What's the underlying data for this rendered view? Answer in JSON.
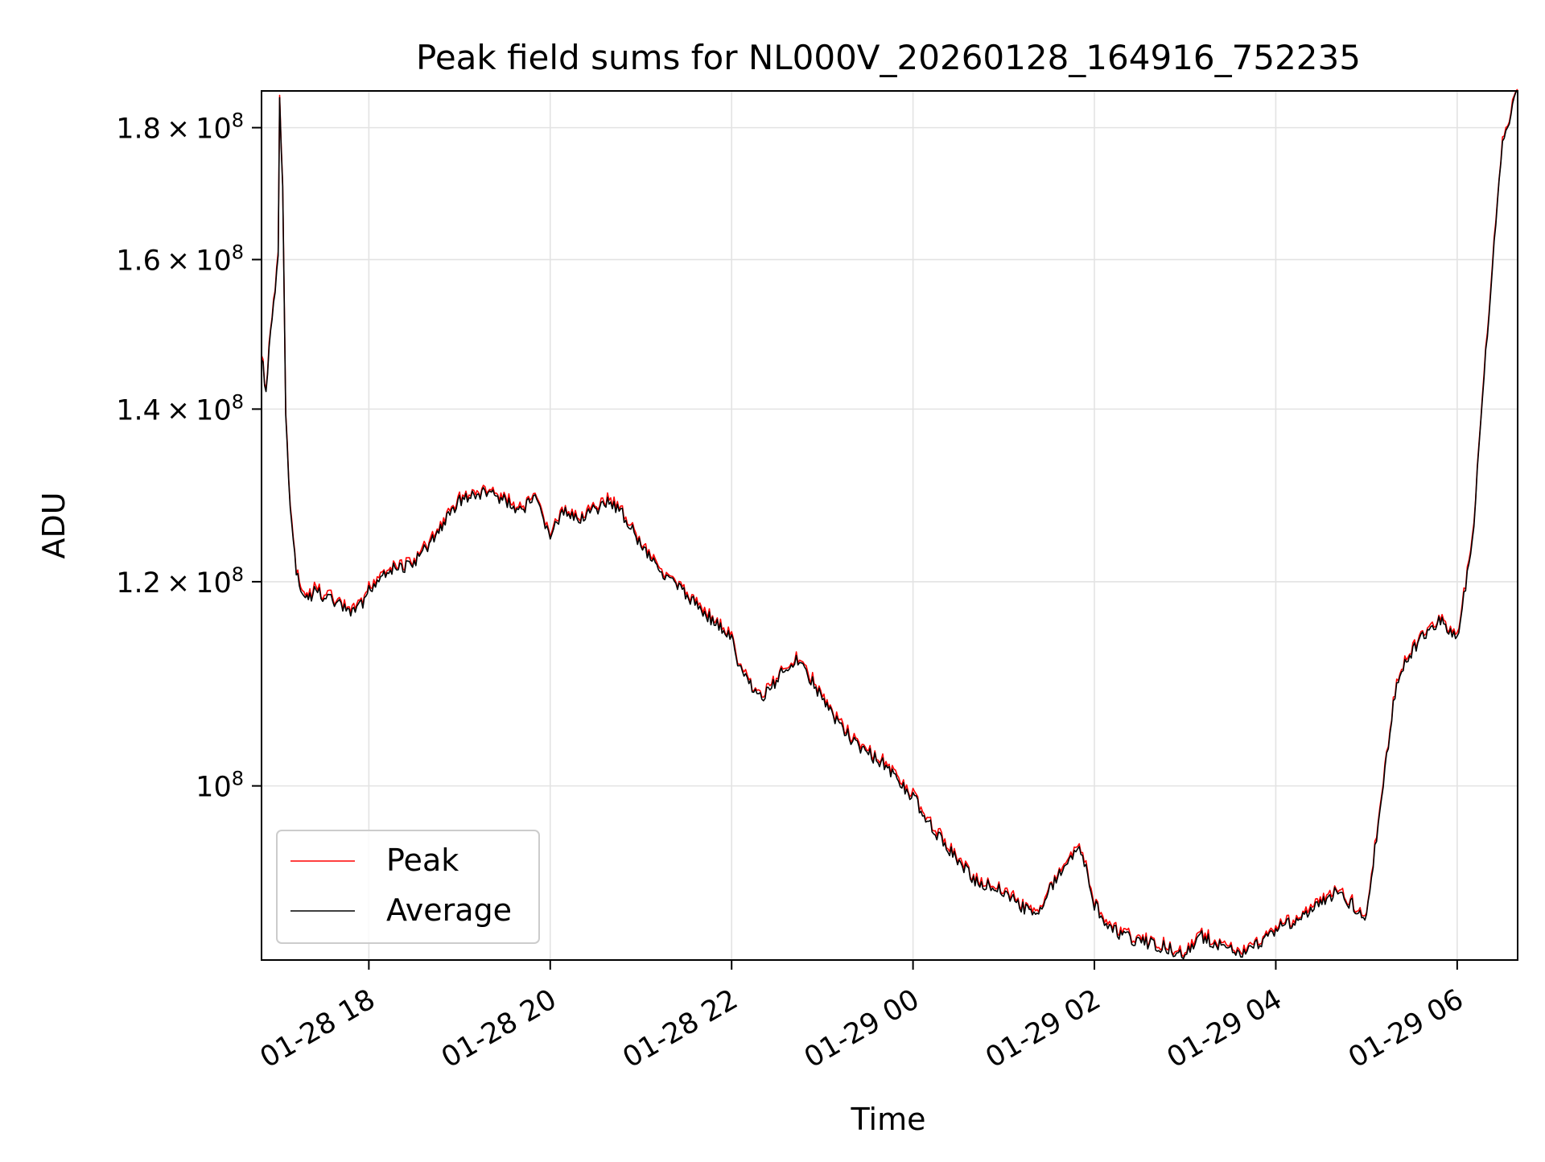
{
  "chart_data": {
    "type": "line",
    "title": "Peak field sums for NL000V_20260128_164916_752235",
    "xlabel": "Time",
    "ylabel": "ADU",
    "y_scale": "log",
    "grid": true,
    "legend_placement": "lower-left",
    "x_range": [
      "2026-01-28 16:49",
      "2026-01-29 06:40"
    ],
    "ylim": [
      85600000,
      186000000
    ],
    "x_ticks": [
      {
        "time": "2026-01-28 18:00",
        "label": "01-28 18"
      },
      {
        "time": "2026-01-28 20:00",
        "label": "01-28 20"
      },
      {
        "time": "2026-01-28 22:00",
        "label": "01-28 22"
      },
      {
        "time": "2026-01-29 00:00",
        "label": "01-29 00"
      },
      {
        "time": "2026-01-29 02:00",
        "label": "01-29 02"
      },
      {
        "time": "2026-01-29 04:00",
        "label": "01-29 04"
      },
      {
        "time": "2026-01-29 06:00",
        "label": "01-29 06"
      }
    ],
    "y_ticks": [
      {
        "value": 100000000,
        "mantissa": "",
        "exp": "8"
      },
      {
        "value": 120000000,
        "mantissa": "1.2",
        "exp": "8"
      },
      {
        "value": 140000000,
        "mantissa": "1.4",
        "exp": "8"
      },
      {
        "value": 160000000,
        "mantissa": "1.6",
        "exp": "8"
      },
      {
        "value": 180000000,
        "mantissa": "1.8",
        "exp": "8"
      }
    ],
    "series": [
      {
        "name": "Peak",
        "color": "#ff0000"
      },
      {
        "name": "Average",
        "color": "#000000"
      }
    ],
    "x": [
      "2026-01-28 16:49",
      "2026-01-28 16:52",
      "2026-01-28 16:55",
      "2026-01-28 16:58",
      "2026-01-28 17:00",
      "2026-01-28 17:01",
      "2026-01-28 17:03",
      "2026-01-28 17:05",
      "2026-01-28 17:08",
      "2026-01-28 17:12",
      "2026-01-28 17:18",
      "2026-01-28 17:25",
      "2026-01-28 17:35",
      "2026-01-28 17:45",
      "2026-01-28 17:53",
      "2026-01-28 18:00",
      "2026-01-28 18:10",
      "2026-01-28 18:30",
      "2026-01-28 18:40",
      "2026-01-28 19:00",
      "2026-01-28 19:20",
      "2026-01-28 19:40",
      "2026-01-28 19:50",
      "2026-01-28 20:00",
      "2026-01-28 20:10",
      "2026-01-28 20:20",
      "2026-01-28 20:40",
      "2026-01-28 20:50",
      "2026-01-28 21:00",
      "2026-01-28 21:20",
      "2026-01-28 21:40",
      "2026-01-28 22:00",
      "2026-01-28 22:05",
      "2026-01-28 22:20",
      "2026-01-28 22:35",
      "2026-01-28 22:45",
      "2026-01-28 23:00",
      "2026-01-28 23:20",
      "2026-01-28 23:40",
      "2026-01-29 00:00",
      "2026-01-29 00:20",
      "2026-01-29 00:40",
      "2026-01-29 01:00",
      "2026-01-29 01:20",
      "2026-01-29 01:40",
      "2026-01-29 01:50",
      "2026-01-29 02:00",
      "2026-01-29 02:10",
      "2026-01-29 02:30",
      "2026-01-29 02:50",
      "2026-01-29 03:00",
      "2026-01-29 03:10",
      "2026-01-29 03:25",
      "2026-01-29 03:40",
      "2026-01-29 04:00",
      "2026-01-29 04:20",
      "2026-01-29 04:40",
      "2026-01-29 05:00",
      "2026-01-29 05:10",
      "2026-01-29 05:20",
      "2026-01-29 05:35",
      "2026-01-29 05:50",
      "2026-01-29 06:00",
      "2026-01-29 06:10",
      "2026-01-29 06:20",
      "2026-01-29 06:30",
      "2026-01-29 06:40"
    ],
    "values": [
      147000000,
      142000000,
      150000000,
      155000000,
      160000000,
      185000000,
      170000000,
      140000000,
      128000000,
      121000000,
      118000000,
      119000000,
      118000000,
      117000000,
      117000000,
      119000000,
      121000000,
      122000000,
      124000000,
      129000000,
      130000000,
      128000000,
      129000000,
      125000000,
      128000000,
      127000000,
      129000000,
      127000000,
      124000000,
      120000000,
      117000000,
      114000000,
      111000000,
      108000000,
      111000000,
      112000000,
      108000000,
      104000000,
      102000000,
      99000000,
      95000000,
      92000000,
      91000000,
      89000000,
      93000000,
      95000000,
      90000000,
      88000000,
      87000000,
      86500000,
      85800000,
      87500000,
      86500000,
      86000000,
      88000000,
      89000000,
      91000000,
      89000000,
      99000000,
      110000000,
      114000000,
      116000000,
      114000000,
      124000000,
      150000000,
      178000000,
      186000000
    ]
  }
}
